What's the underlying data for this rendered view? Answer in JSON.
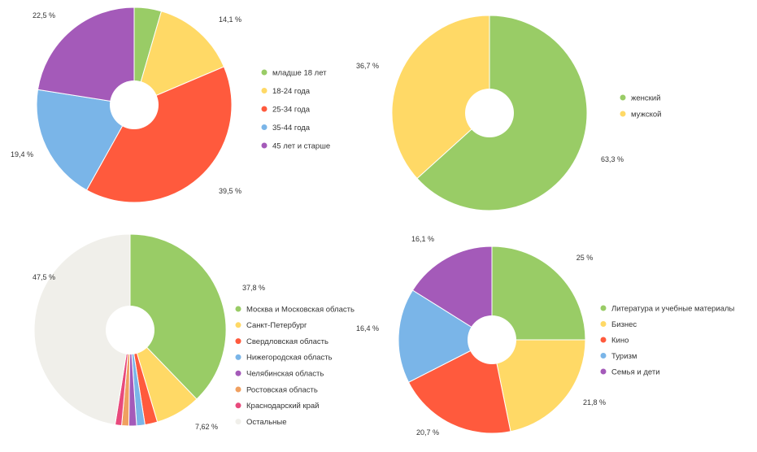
{
  "colors": {
    "green": "#99cc66",
    "yellow": "#ffd966",
    "red": "#ff5a3d",
    "blue": "#7ab5e8",
    "purple": "#a45ab9",
    "orange": "#f0a060",
    "pink": "#e84a7c",
    "gray": "#f0efea"
  },
  "chart_data": [
    {
      "type": "pie",
      "labels": [
        "младше 18 лет",
        "18-24 года",
        "25-34 года",
        "35-44 года",
        "45 лет и старше"
      ],
      "values": [
        4.5,
        14.1,
        39.5,
        19.4,
        22.5
      ],
      "value_labels": [
        "",
        "14,1 %",
        "39,5 %",
        "19,4 %",
        "22,5 %"
      ],
      "colors": [
        "green",
        "yellow",
        "red",
        "blue",
        "purple"
      ],
      "legend": "right"
    },
    {
      "type": "pie",
      "labels": [
        "женский",
        "мужской"
      ],
      "values": [
        63.3,
        36.7
      ],
      "value_labels": [
        "63,3 %",
        "36,7 %"
      ],
      "colors": [
        "green",
        "yellow"
      ],
      "legend": "right"
    },
    {
      "type": "pie",
      "labels": [
        "Москва и Московская область",
        "Санкт-Петербург",
        "Свердловская область",
        "Нижегородская область",
        "Челябинская область",
        "Ростовская область",
        "Краснодарский край",
        "Остальные"
      ],
      "values": [
        37.8,
        7.62,
        2.1,
        1.4,
        1.3,
        1.2,
        1.1,
        47.5
      ],
      "value_labels": [
        "37,8 %",
        "7,62 %",
        "",
        "",
        "",
        "",
        "",
        "47,5 %"
      ],
      "colors": [
        "green",
        "yellow",
        "red",
        "blue",
        "purple",
        "orange",
        "pink",
        "gray"
      ],
      "legend": "right"
    },
    {
      "type": "pie",
      "labels": [
        "Литература и учебные материалы",
        "Бизнес",
        "Кино",
        "Туризм",
        "Семья и дети"
      ],
      "values": [
        25,
        21.8,
        20.7,
        16.4,
        16.1
      ],
      "value_labels": [
        "25 %",
        "21,8 %",
        "20,7 %",
        "16,4 %",
        "16,1 %"
      ],
      "colors": [
        "green",
        "yellow",
        "red",
        "blue",
        "purple"
      ],
      "legend": "right"
    }
  ]
}
